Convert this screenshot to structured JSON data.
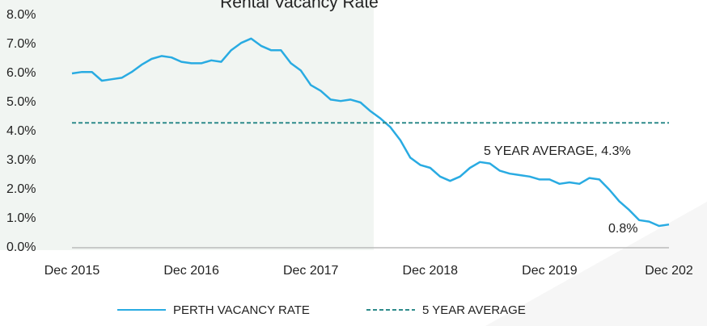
{
  "chart_data": {
    "type": "line",
    "title": "Rental Vacancy Rate",
    "categories": [
      "Dec 2015",
      null,
      null,
      null,
      null,
      null,
      null,
      null,
      null,
      null,
      null,
      null,
      "Dec 2016",
      null,
      null,
      null,
      null,
      null,
      null,
      null,
      null,
      null,
      null,
      null,
      "Dec 2017",
      null,
      null,
      null,
      null,
      null,
      null,
      null,
      null,
      null,
      null,
      null,
      "Dec 2018",
      null,
      null,
      null,
      null,
      null,
      null,
      null,
      null,
      null,
      null,
      null,
      "Dec 2019",
      null,
      null,
      null,
      null,
      null,
      null,
      null,
      null,
      null,
      null,
      null,
      "Dec 202"
    ],
    "series": [
      {
        "name": "PERTH VACANCY RATE",
        "color": "#29abe2",
        "dash": false,
        "values": [
          6.0,
          6.05,
          6.05,
          5.75,
          5.8,
          5.85,
          6.05,
          6.3,
          6.5,
          6.6,
          6.55,
          6.4,
          6.35,
          6.35,
          6.45,
          6.4,
          6.8,
          7.05,
          7.2,
          6.95,
          6.8,
          6.8,
          6.35,
          6.1,
          5.6,
          5.4,
          5.1,
          5.05,
          5.1,
          5.0,
          4.7,
          4.45,
          4.15,
          3.7,
          3.1,
          2.85,
          2.75,
          2.45,
          2.3,
          2.45,
          2.75,
          2.95,
          2.9,
          2.65,
          2.55,
          2.5,
          2.45,
          2.35,
          2.35,
          2.2,
          2.25,
          2.2,
          2.4,
          2.35,
          2.0,
          1.6,
          1.3,
          0.95,
          0.9,
          0.75,
          0.8
        ]
      },
      {
        "name": "5 YEAR AVERAGE",
        "color": "#2e8b8b",
        "dash": true,
        "values": [
          4.3,
          4.3,
          4.3,
          4.3,
          4.3,
          4.3,
          4.3,
          4.3,
          4.3,
          4.3,
          4.3,
          4.3,
          4.3,
          4.3,
          4.3,
          4.3,
          4.3,
          4.3,
          4.3,
          4.3,
          4.3,
          4.3,
          4.3,
          4.3,
          4.3,
          4.3,
          4.3,
          4.3,
          4.3,
          4.3,
          4.3,
          4.3,
          4.3,
          4.3,
          4.3,
          4.3,
          4.3,
          4.3,
          4.3,
          4.3,
          4.3,
          4.3,
          4.3,
          4.3,
          4.3,
          4.3,
          4.3,
          4.3,
          4.3,
          4.3,
          4.3,
          4.3,
          4.3,
          4.3,
          4.3,
          4.3,
          4.3,
          4.3,
          4.3,
          4.3,
          4.3
        ]
      }
    ],
    "annotations": [
      "5 YEAR AVERAGE, 4.3%",
      "0.8%"
    ],
    "ylim": [
      0,
      8
    ],
    "yticks": [
      {
        "value": 0,
        "label": "0.0%"
      },
      {
        "value": 1,
        "label": "1.0%"
      },
      {
        "value": 2,
        "label": "2.0%"
      },
      {
        "value": 3,
        "label": "3.0%"
      },
      {
        "value": 4,
        "label": "4.0%"
      },
      {
        "value": 5,
        "label": "5.0%"
      },
      {
        "value": 6,
        "label": "6.0%"
      },
      {
        "value": 7,
        "label": "7.0%"
      },
      {
        "value": 8,
        "label": "8.0%"
      }
    ],
    "grid": false,
    "legend": "bottom"
  }
}
